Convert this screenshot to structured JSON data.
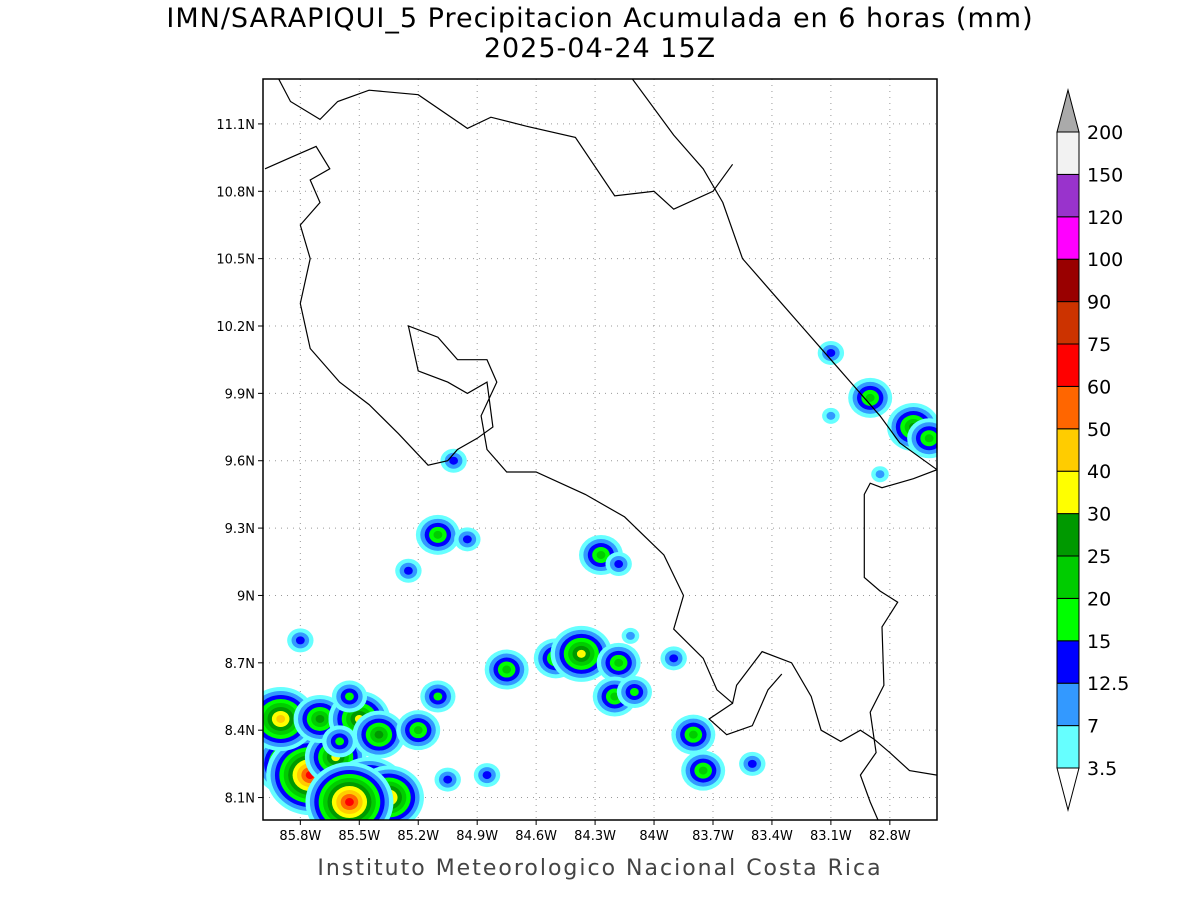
{
  "title": "IMN/SARAPIQUI_5 Precipitacion Acumulada en 6 horas (mm)",
  "subtitle": "2025-04-24 15Z",
  "footer": "Instituto Meteorologico Nacional Costa Rica",
  "map": {
    "lon_range": [
      -85.99,
      -82.56
    ],
    "lat_range": [
      8.0,
      11.3
    ],
    "grid": true,
    "lat_ticks": [
      {
        "value": 8.1,
        "label": "8.1N"
      },
      {
        "value": 8.4,
        "label": "8.4N"
      },
      {
        "value": 8.7,
        "label": "8.7N"
      },
      {
        "value": 9.0,
        "label": "9N"
      },
      {
        "value": 9.3,
        "label": "9.3N"
      },
      {
        "value": 9.6,
        "label": "9.6N"
      },
      {
        "value": 9.9,
        "label": "9.9N"
      },
      {
        "value": 10.2,
        "label": "10.2N"
      },
      {
        "value": 10.5,
        "label": "10.5N"
      },
      {
        "value": 10.8,
        "label": "10.8N"
      },
      {
        "value": 11.1,
        "label": "11.1N"
      }
    ],
    "lon_ticks": [
      {
        "value": -85.8,
        "label": "85.8W"
      },
      {
        "value": -85.5,
        "label": "85.5W"
      },
      {
        "value": -85.2,
        "label": "85.2W"
      },
      {
        "value": -84.9,
        "label": "84.9W"
      },
      {
        "value": -84.6,
        "label": "84.6W"
      },
      {
        "value": -84.3,
        "label": "84.3W"
      },
      {
        "value": -84.0,
        "label": "84W"
      },
      {
        "value": -83.7,
        "label": "83.7W"
      },
      {
        "value": -83.4,
        "label": "83.4W"
      },
      {
        "value": -83.1,
        "label": "83.1W"
      },
      {
        "value": -82.8,
        "label": "82.8W"
      }
    ],
    "boundaries": [
      {
        "name": "nicaragua-costa-rica-border",
        "points": [
          [
            -85.91,
            11.3
          ],
          [
            -85.85,
            11.2
          ],
          [
            -85.7,
            11.12
          ],
          [
            -85.61,
            11.2
          ],
          [
            -85.45,
            11.25
          ],
          [
            -85.2,
            11.23
          ],
          [
            -84.95,
            11.08
          ],
          [
            -84.83,
            11.13
          ],
          [
            -84.65,
            11.09
          ],
          [
            -84.4,
            11.04
          ],
          [
            -84.2,
            10.78
          ],
          [
            -84.0,
            10.8
          ],
          [
            -83.9,
            10.72
          ],
          [
            -83.7,
            10.8
          ],
          [
            -83.6,
            10.92
          ]
        ]
      },
      {
        "name": "caribbean-coast",
        "points": [
          [
            -84.11,
            11.3
          ],
          [
            -83.9,
            11.05
          ],
          [
            -83.75,
            10.9
          ],
          [
            -83.65,
            10.75
          ],
          [
            -83.55,
            10.5
          ],
          [
            -83.4,
            10.35
          ],
          [
            -83.25,
            10.2
          ],
          [
            -83.1,
            10.05
          ],
          [
            -83.0,
            9.95
          ],
          [
            -82.85,
            9.8
          ],
          [
            -82.75,
            9.68
          ],
          [
            -82.56,
            9.56
          ]
        ]
      },
      {
        "name": "panama-border",
        "points": [
          [
            -82.56,
            9.56
          ],
          [
            -82.68,
            9.52
          ],
          [
            -82.84,
            9.48
          ],
          [
            -82.9,
            9.5
          ],
          [
            -82.93,
            9.45
          ],
          [
            -82.93,
            9.08
          ],
          [
            -82.85,
            9.02
          ],
          [
            -82.76,
            8.97
          ],
          [
            -82.84,
            8.86
          ],
          [
            -82.83,
            8.6
          ],
          [
            -82.9,
            8.48
          ],
          [
            -82.87,
            8.3
          ],
          [
            -82.95,
            8.2
          ],
          [
            -82.9,
            8.08
          ],
          [
            -82.86,
            8.0
          ]
        ]
      },
      {
        "name": "pacific-coast-south",
        "points": [
          [
            -82.56,
            8.2
          ],
          [
            -82.7,
            8.22
          ],
          [
            -82.8,
            8.3
          ],
          [
            -82.88,
            8.36
          ],
          [
            -82.95,
            8.4
          ],
          [
            -83.05,
            8.35
          ],
          [
            -83.15,
            8.4
          ],
          [
            -83.2,
            8.55
          ],
          [
            -83.3,
            8.7
          ],
          [
            -83.45,
            8.75
          ],
          [
            -83.58,
            8.6
          ],
          [
            -83.6,
            8.52
          ],
          [
            -83.68,
            8.58
          ],
          [
            -83.75,
            8.72
          ],
          [
            -83.9,
            8.85
          ],
          [
            -83.85,
            9.0
          ],
          [
            -83.95,
            9.18
          ],
          [
            -84.15,
            9.35
          ],
          [
            -84.35,
            9.45
          ],
          [
            -84.6,
            9.55
          ],
          [
            -84.75,
            9.55
          ],
          [
            -84.85,
            9.65
          ],
          [
            -84.88,
            9.8
          ],
          [
            -84.8,
            9.95
          ],
          [
            -84.85,
            10.05
          ],
          [
            -85.0,
            10.05
          ],
          [
            -85.1,
            10.15
          ],
          [
            -85.25,
            10.2
          ],
          [
            -85.2,
            10.0
          ],
          [
            -85.05,
            9.95
          ],
          [
            -84.95,
            9.9
          ],
          [
            -84.85,
            9.95
          ],
          [
            -84.82,
            9.75
          ],
          [
            -84.9,
            9.7
          ],
          [
            -85.0,
            9.65
          ],
          [
            -85.05,
            9.6
          ],
          [
            -85.15,
            9.58
          ],
          [
            -85.3,
            9.72
          ],
          [
            -85.45,
            9.85
          ],
          [
            -85.6,
            9.95
          ],
          [
            -85.75,
            10.1
          ],
          [
            -85.8,
            10.3
          ],
          [
            -85.75,
            10.5
          ],
          [
            -85.8,
            10.65
          ],
          [
            -85.7,
            10.75
          ],
          [
            -85.75,
            10.85
          ],
          [
            -85.65,
            10.9
          ],
          [
            -85.72,
            11.0
          ],
          [
            -85.85,
            10.95
          ],
          [
            -85.98,
            10.9
          ]
        ]
      },
      {
        "name": "osa-peninsula",
        "points": [
          [
            -83.6,
            8.52
          ],
          [
            -83.72,
            8.45
          ],
          [
            -83.63,
            8.38
          ],
          [
            -83.5,
            8.42
          ],
          [
            -83.42,
            8.58
          ],
          [
            -83.35,
            8.65
          ]
        ]
      }
    ]
  },
  "colorbar": {
    "levels": [
      "3.5",
      "7",
      "12.5",
      "15",
      "20",
      "25",
      "30",
      "40",
      "50",
      "60",
      "75",
      "90",
      "100",
      "120",
      "150",
      "200"
    ],
    "colors": [
      "#66ffff",
      "#3399ff",
      "#0000ff",
      "#00ff00",
      "#00cc00",
      "#009900",
      "#ffff00",
      "#ffcc00",
      "#ff6600",
      "#ff0000",
      "#cc3300",
      "#990000",
      "#ff00ff",
      "#9933cc",
      "#f2f2f2",
      "#aaaaaa"
    ]
  },
  "precip_cells": [
    {
      "lon": -85.85,
      "lat": 8.25,
      "mm": 40
    },
    {
      "lon": -85.75,
      "lat": 8.2,
      "mm": 60
    },
    {
      "lon": -85.62,
      "lat": 8.28,
      "mm": 30
    },
    {
      "lon": -85.45,
      "lat": 8.12,
      "mm": 50
    },
    {
      "lon": -85.35,
      "lat": 8.1,
      "mm": 40
    },
    {
      "lon": -85.55,
      "lat": 8.08,
      "mm": 60
    },
    {
      "lon": -85.9,
      "lat": 8.45,
      "mm": 40
    },
    {
      "lon": -85.7,
      "lat": 8.45,
      "mm": 25
    },
    {
      "lon": -85.5,
      "lat": 8.45,
      "mm": 30
    },
    {
      "lon": -85.4,
      "lat": 8.38,
      "mm": 25
    },
    {
      "lon": -85.6,
      "lat": 8.35,
      "mm": 15
    },
    {
      "lon": -85.2,
      "lat": 8.4,
      "mm": 20
    },
    {
      "lon": -85.55,
      "lat": 8.55,
      "mm": 15
    },
    {
      "lon": -85.1,
      "lat": 8.55,
      "mm": 15
    },
    {
      "lon": -84.75,
      "lat": 8.67,
      "mm": 20
    },
    {
      "lon": -84.5,
      "lat": 8.72,
      "mm": 20
    },
    {
      "lon": -84.37,
      "lat": 8.74,
      "mm": 30
    },
    {
      "lon": -84.18,
      "lat": 8.7,
      "mm": 20
    },
    {
      "lon": -84.2,
      "lat": 8.55,
      "mm": 20
    },
    {
      "lon": -84.1,
      "lat": 8.57,
      "mm": 15
    },
    {
      "lon": -83.9,
      "lat": 8.72,
      "mm": 12.5
    },
    {
      "lon": -83.8,
      "lat": 8.38,
      "mm": 20
    },
    {
      "lon": -83.75,
      "lat": 8.22,
      "mm": 20
    },
    {
      "lon": -83.5,
      "lat": 8.25,
      "mm": 12.5
    },
    {
      "lon": -85.05,
      "lat": 8.18,
      "mm": 12.5
    },
    {
      "lon": -84.85,
      "lat": 8.2,
      "mm": 12.5
    },
    {
      "lon": -85.1,
      "lat": 9.27,
      "mm": 20
    },
    {
      "lon": -84.95,
      "lat": 9.25,
      "mm": 12.5
    },
    {
      "lon": -85.25,
      "lat": 9.11,
      "mm": 12.5
    },
    {
      "lon": -85.02,
      "lat": 9.6,
      "mm": 12.5
    },
    {
      "lon": -84.27,
      "lat": 9.18,
      "mm": 20
    },
    {
      "lon": -84.18,
      "lat": 9.14,
      "mm": 12.5
    },
    {
      "lon": -85.8,
      "lat": 8.8,
      "mm": 12.5
    },
    {
      "lon": -83.1,
      "lat": 10.08,
      "mm": 12.5
    },
    {
      "lon": -82.9,
      "lat": 9.88,
      "mm": 20
    },
    {
      "lon": -82.68,
      "lat": 9.75,
      "mm": 25
    },
    {
      "lon": -82.6,
      "lat": 9.7,
      "mm": 20
    },
    {
      "lon": -83.1,
      "lat": 9.8,
      "mm": 7
    },
    {
      "lon": -82.85,
      "lat": 9.54,
      "mm": 7
    },
    {
      "lon": -84.12,
      "lat": 8.82,
      "mm": 7
    }
  ]
}
